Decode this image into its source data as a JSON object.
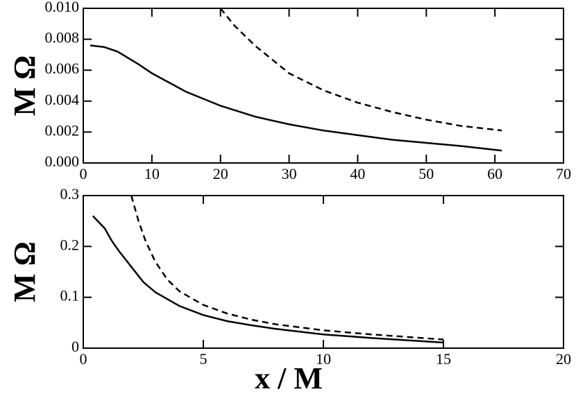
{
  "chart_data": [
    {
      "type": "line",
      "ylabel": "M Ω",
      "xlim": [
        0,
        70
      ],
      "xticks": [
        0,
        10,
        20,
        30,
        40,
        50,
        60,
        70
      ],
      "ylim": [
        0,
        0.01
      ],
      "yticks": [
        {
          "value": 0,
          "label": "0.000"
        },
        0.002,
        0.004,
        0.006,
        0.008,
        {
          "value": 0.01,
          "label": "0.010"
        }
      ],
      "series": [
        {
          "color": "#000000",
          "line_style": "solid",
          "x": [
            1,
            3,
            5,
            8,
            10,
            15,
            20,
            25,
            30,
            35,
            40,
            45,
            50,
            55,
            61
          ],
          "values": [
            0.0076,
            0.0075,
            0.0072,
            0.0064,
            0.0058,
            0.0046,
            0.0037,
            0.003,
            0.0025,
            0.0021,
            0.0018,
            0.0015,
            0.0013,
            0.0011,
            0.0008
          ]
        },
        {
          "color": "#000000",
          "line_style": "dashed",
          "x": [
            20,
            22,
            25,
            30,
            35,
            40,
            45,
            50,
            55,
            61
          ],
          "values": [
            0.01,
            0.0089,
            0.0076,
            0.0058,
            0.0047,
            0.0039,
            0.0033,
            0.0028,
            0.0024,
            0.0021
          ]
        }
      ]
    },
    {
      "type": "line",
      "ylabel": "M Ω",
      "xlabel": "x / M",
      "xlim": [
        0,
        20
      ],
      "xticks": [
        0,
        5,
        10,
        15,
        20
      ],
      "ylim": [
        0,
        0.3
      ],
      "yticks": [
        0,
        0.1,
        0.2,
        0.3
      ],
      "series": [
        {
          "color": "#000000",
          "line_style": "solid",
          "x": [
            0.4,
            0.9,
            1.2,
            1.5,
            2,
            2.5,
            3,
            4,
            5,
            6,
            7,
            8,
            10,
            12,
            15
          ],
          "values": [
            0.26,
            0.235,
            0.21,
            0.19,
            0.16,
            0.13,
            0.11,
            0.083,
            0.065,
            0.053,
            0.045,
            0.038,
            0.027,
            0.02,
            0.011
          ]
        },
        {
          "color": "#000000",
          "line_style": "dashed",
          "x": [
            2,
            2.3,
            2.6,
            3,
            3.5,
            4,
            5,
            6,
            7,
            8,
            10,
            12,
            15
          ],
          "values": [
            0.3,
            0.25,
            0.21,
            0.17,
            0.135,
            0.112,
            0.085,
            0.068,
            0.056,
            0.047,
            0.035,
            0.027,
            0.017
          ]
        }
      ]
    }
  ]
}
